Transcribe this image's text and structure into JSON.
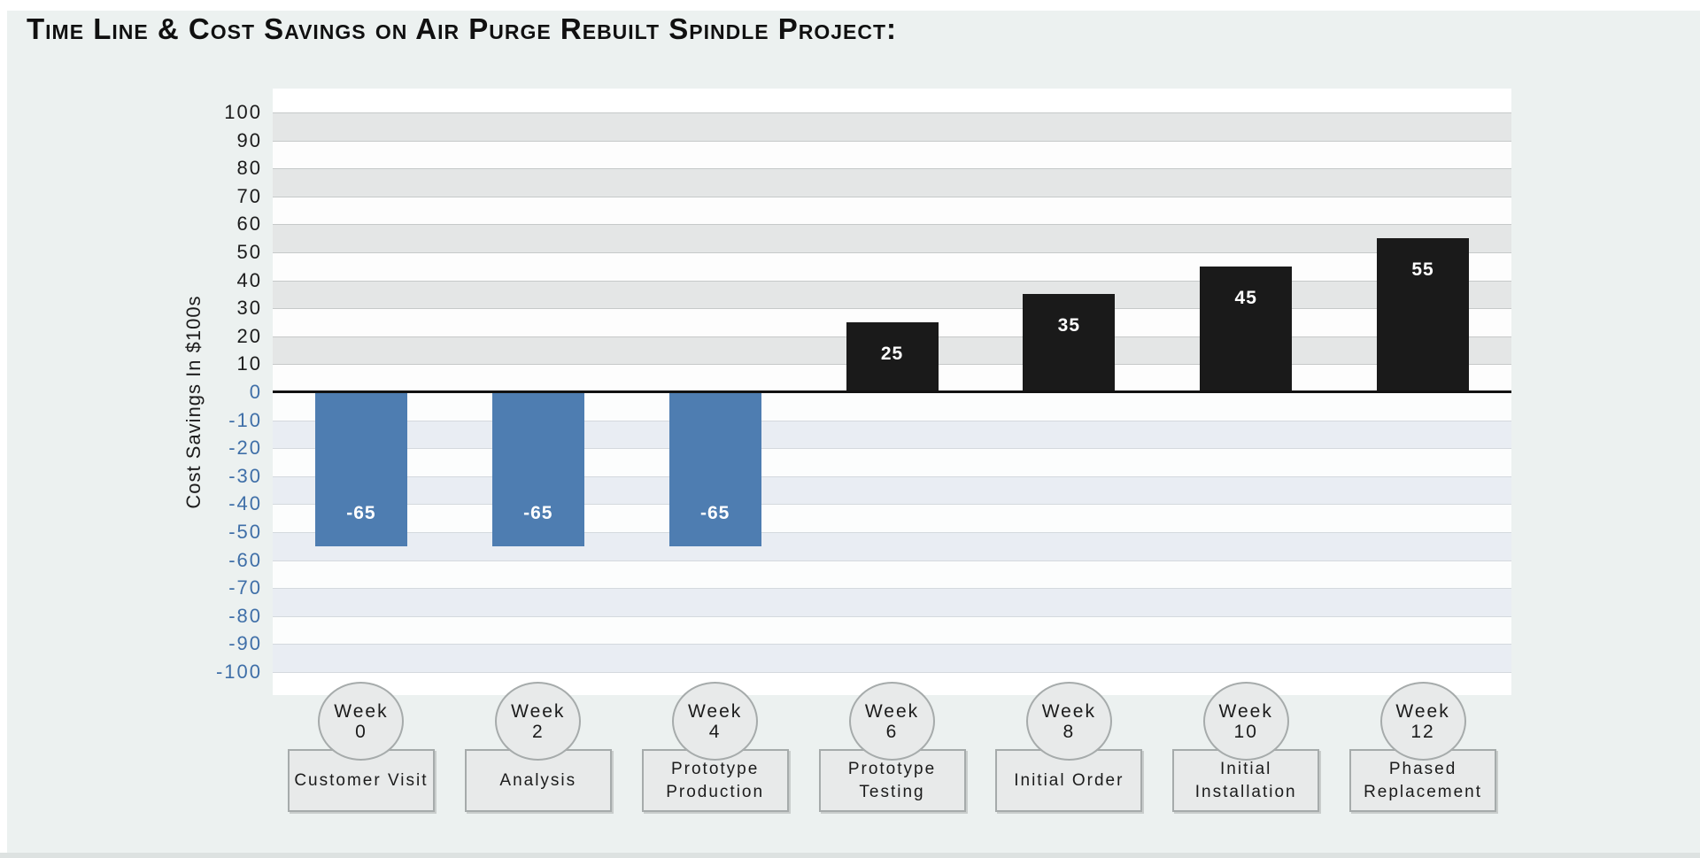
{
  "page": {
    "title": "Time Line & Cost Savings on Air Purge Rebuilt Spindle Project:"
  },
  "chart_data": {
    "type": "bar",
    "title": "Time Line & Cost Savings on Air Purge Rebuilt Spindle Project:",
    "xlabel": "",
    "ylabel": "Cost Savings In $100s",
    "ylim": [
      -100,
      100
    ],
    "ytick_step": 10,
    "yticks": [
      100,
      90,
      80,
      70,
      60,
      50,
      40,
      30,
      20,
      10,
      0,
      -10,
      -20,
      -30,
      -40,
      -50,
      -60,
      -70,
      -80,
      -90,
      -100
    ],
    "grid": "horizontal-banded",
    "legend": "none",
    "categories": [
      {
        "week": "Week",
        "week_num": "0",
        "stage": "Customer Visit"
      },
      {
        "week": "Week",
        "week_num": "2",
        "stage": "Analysis"
      },
      {
        "week": "Week",
        "week_num": "4",
        "stage": "Prototype Production"
      },
      {
        "week": "Week",
        "week_num": "6",
        "stage": "Prototype Testing"
      },
      {
        "week": "Week",
        "week_num": "8",
        "stage": "Initial Order"
      },
      {
        "week": "Week",
        "week_num": "10",
        "stage": "Initial Installation"
      },
      {
        "week": "Week",
        "week_num": "12",
        "stage": "Phased Replacement"
      }
    ],
    "series": [
      {
        "name": "Cost Savings",
        "values": [
          -65,
          -65,
          -65,
          25,
          35,
          45,
          55
        ],
        "data_labels": [
          "-65",
          "-65",
          "-65",
          "25",
          "35",
          "45",
          "55"
        ]
      }
    ],
    "negative_bars_drawn_to": -55,
    "colors": {
      "negative_bar": "#4e7db1",
      "positive_bar": "#1a1a1a",
      "bar_label_text": "#ffffff",
      "positive_tick_text": "#1c1c1c",
      "negative_tick_text": "#3f6fa8",
      "band_gray": "#e4e6e6",
      "band_white": "#fdfdfd",
      "band_blue": "#e9edf3",
      "band_white_negative": "#fcfdfd",
      "grid_line_positive": "#c6c9c9",
      "grid_line_negative": "#d4d9de",
      "zero_line": "#121212",
      "page_background": "#ecf1f0",
      "node_fill": "#e8eaea",
      "node_border": "#a6abab"
    }
  }
}
